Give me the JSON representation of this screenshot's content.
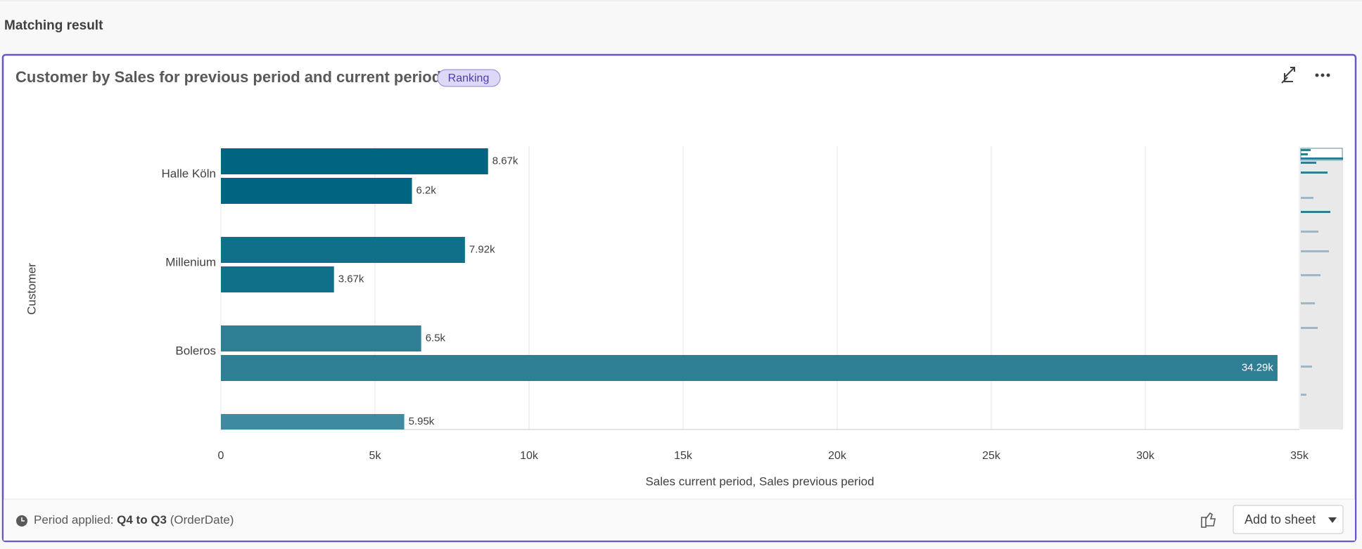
{
  "header": {
    "title": "Matching result"
  },
  "card": {
    "title": "Customer by Sales for previous period and current period",
    "badge": "Ranking",
    "footer": {
      "label": "Period applied:",
      "period": "Q4 to Q3",
      "field": "(OrderDate)"
    },
    "button": "Add to sheet"
  },
  "chart_data": {
    "type": "bar",
    "orientation": "horizontal",
    "categories": [
      "Halle Köln",
      "Millenium",
      "Boleros",
      null
    ],
    "colors": [
      "#006580",
      "#10708a",
      "#2f7f94",
      "#3e8aa0"
    ],
    "series": [
      {
        "values": [
          8670,
          7920,
          6500,
          5950
        ],
        "value_labels": [
          "8.67k",
          "7.92k",
          "6.5k",
          "5.95k"
        ]
      },
      {
        "values": [
          6200,
          3670,
          34290,
          null
        ],
        "value_labels": [
          "6.2k",
          "3.67k",
          "34.29k",
          null
        ]
      }
    ],
    "x_label": "Sales current period, Sales previous period",
    "y_label": "Customer",
    "xlim": [
      0,
      35000
    ],
    "xticks": [
      0,
      {
        "value": 5000,
        "label": "5k"
      },
      {
        "value": 10000,
        "label": "10k"
      },
      {
        "value": 15000,
        "label": "15k"
      },
      {
        "value": 20000,
        "label": "20k"
      },
      {
        "value": 25000,
        "label": "25k"
      },
      {
        "value": 30000,
        "label": "30k"
      },
      {
        "value": 35000,
        "label": "35k"
      }
    ],
    "grid": true
  }
}
